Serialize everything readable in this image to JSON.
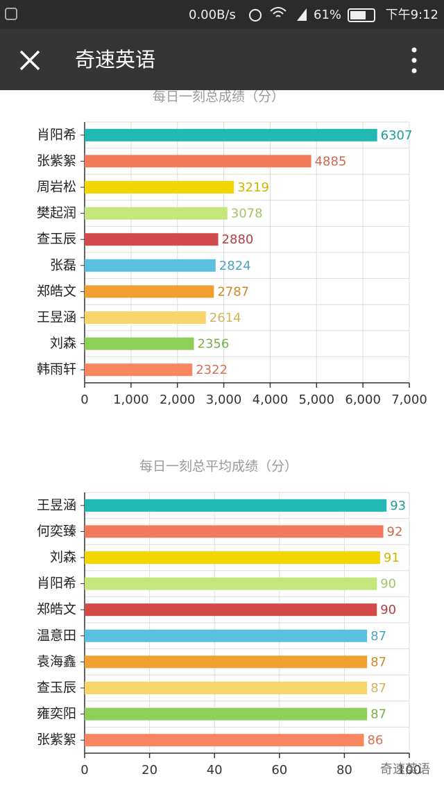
{
  "status_bar": {
    "speed": "0.00B/s",
    "battery": "61%",
    "time": "下午9:12"
  },
  "app_bar": {
    "title": "奇速英语"
  },
  "watermark": "奇速英语",
  "chart_data": [
    {
      "type": "bar",
      "orientation": "horizontal",
      "title": "每日一刻总成绩（分）",
      "categories": [
        "肖阳希",
        "张紫絮",
        "周岩松",
        "樊起润",
        "查玉辰",
        "张磊",
        "郑皓文",
        "王昱涵",
        "刘森",
        "韩雨轩"
      ],
      "values": [
        6307,
        4885,
        3219,
        3078,
        2880,
        2824,
        2787,
        2614,
        2356,
        2322
      ],
      "colors": [
        "#22b8b3",
        "#f27a5c",
        "#f2d600",
        "#c4e67a",
        "#d24a4a",
        "#5bbfe0",
        "#f0a030",
        "#f8d56a",
        "#8ecf5a",
        "#f88660"
      ],
      "xlim": [
        0,
        7000
      ],
      "xticks": [
        0,
        {
          "value": 1000,
          "label": "1,000"
        },
        {
          "value": 2000,
          "label": "2,000"
        },
        {
          "value": 3000,
          "label": "3,000"
        },
        {
          "value": 4000,
          "label": "4,000"
        },
        {
          "value": 5000,
          "label": "5,000"
        },
        {
          "value": 6000,
          "label": "6,000"
        },
        {
          "value": 7000,
          "label": "7,000"
        }
      ],
      "grid": true
    },
    {
      "type": "bar",
      "orientation": "horizontal",
      "title": "每日一刻总平均成绩（分）",
      "categories": [
        "王昱涵",
        "何奕臻",
        "刘森",
        "肖阳希",
        "郑皓文",
        "温意田",
        "袁海鑫",
        "查玉辰",
        "雍奕阳",
        "张紫絮"
      ],
      "values": [
        93,
        92,
        91,
        90,
        90,
        87,
        87,
        87,
        87,
        86
      ],
      "colors": [
        "#22b8b3",
        "#f27a5c",
        "#f2d600",
        "#c4e67a",
        "#d24a4a",
        "#5bbfe0",
        "#f0a030",
        "#f8d56a",
        "#8ecf5a",
        "#f88660"
      ],
      "xlim": [
        0,
        100
      ],
      "xticks": [
        0,
        20,
        40,
        60,
        80,
        100
      ],
      "grid": true
    }
  ]
}
